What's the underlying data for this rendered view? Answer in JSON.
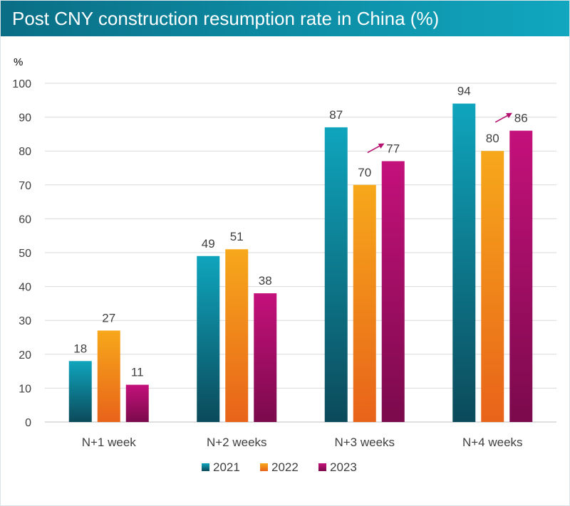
{
  "title": "Post CNY construction resumption rate in China (%)",
  "chart_data": {
    "type": "bar",
    "title": "Post CNY construction resumption rate in China (%)",
    "ylabel": "%",
    "xlabel": "",
    "ylim": [
      0,
      100
    ],
    "yticks": [
      0,
      10,
      20,
      30,
      40,
      50,
      60,
      70,
      80,
      90,
      100
    ],
    "categories": [
      "N+1 week",
      "N+2 weeks",
      "N+3 weeks",
      "N+4 weeks"
    ],
    "series": [
      {
        "name": "2021",
        "values": [
          18,
          49,
          87,
          94
        ],
        "color_top": "#0fa5bd",
        "color_bottom": "#0b4a5a"
      },
      {
        "name": "2022",
        "values": [
          27,
          51,
          70,
          80
        ],
        "color_top": "#f7a81b",
        "color_bottom": "#e8631a"
      },
      {
        "name": "2023",
        "values": [
          11,
          38,
          77,
          86
        ],
        "color_top": "#c4117b",
        "color_bottom": "#7b0a4c"
      }
    ],
    "grid": true,
    "legend_position": "bottom",
    "annotations": [
      {
        "type": "arrow",
        "category": "N+3 weeks",
        "series": "2023",
        "color": "#b5106f"
      },
      {
        "type": "arrow",
        "category": "N+4 weeks",
        "series": "2023",
        "color": "#b5106f"
      }
    ]
  }
}
